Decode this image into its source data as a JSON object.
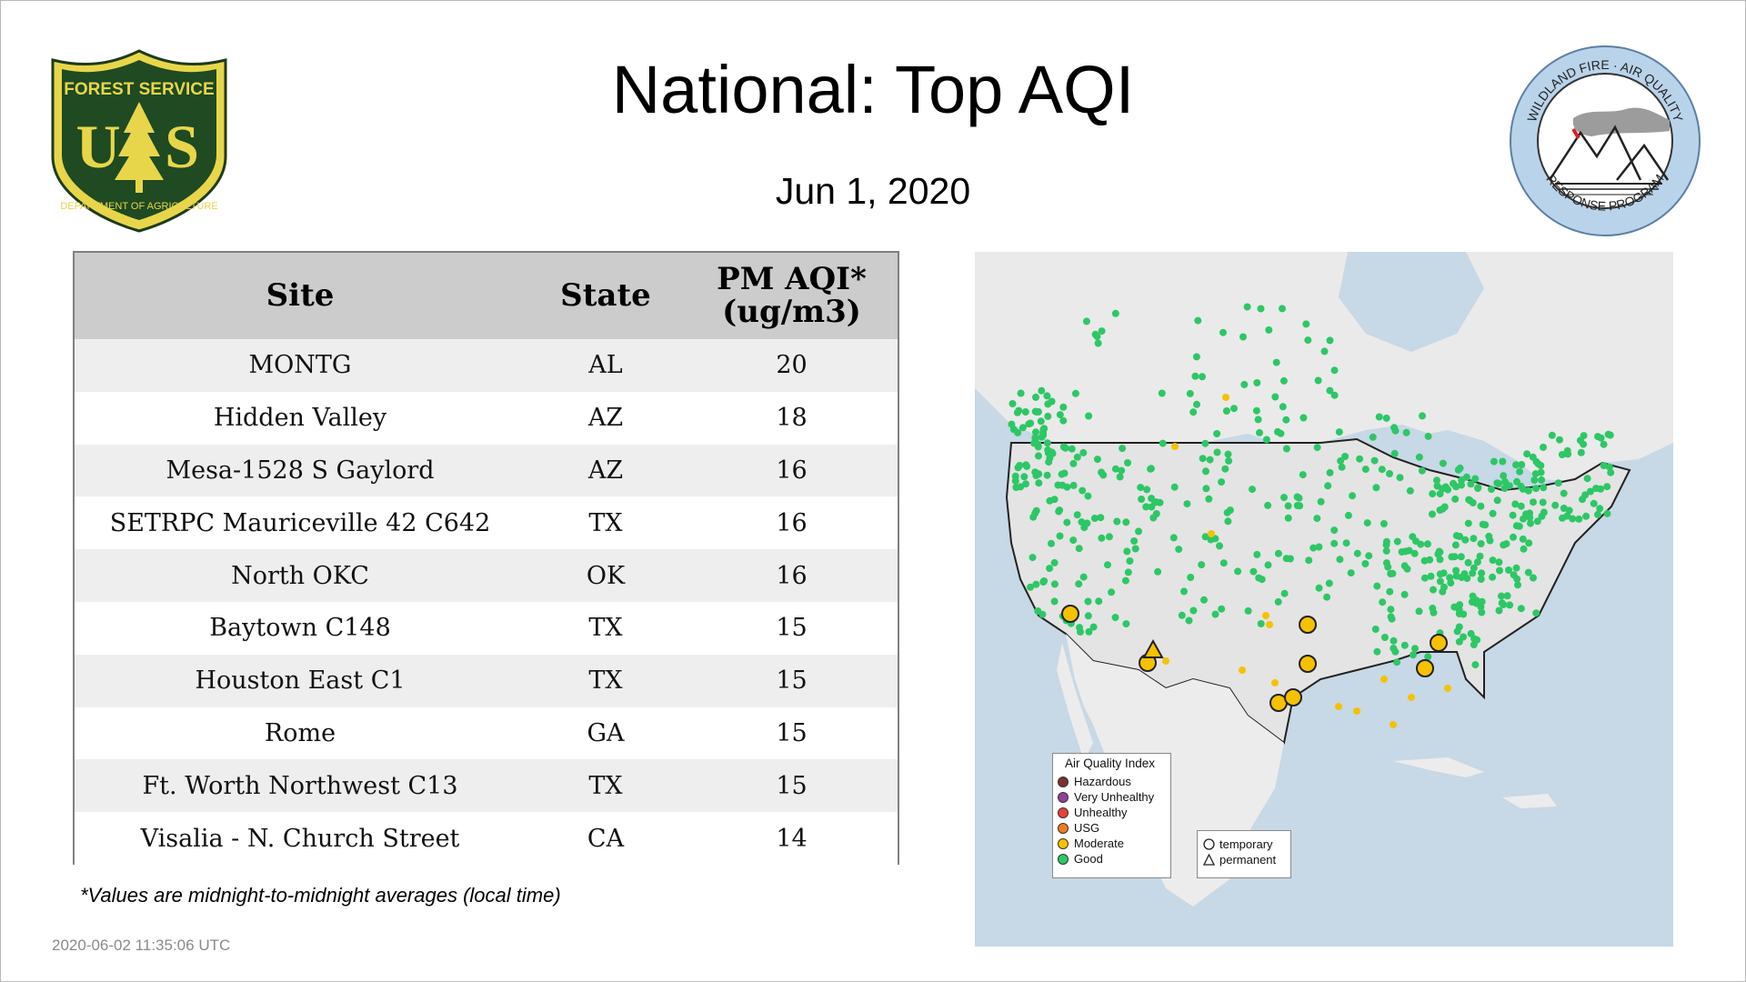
{
  "title": "National: Top AQI",
  "date": "Jun  1, 2020",
  "logos": {
    "forest_service": {
      "top": "FOREST SERVICE",
      "center": "U S",
      "bottom": "DEPARTMENT OF AGRICULTURE"
    },
    "wildland": {
      "top": "WILDLAND FIRE · AIR QUALITY",
      "bottom": "RESPONSE PROGRAM"
    }
  },
  "table": {
    "headers": {
      "site": "Site",
      "state": "State",
      "pm_line1": "PM AQI*",
      "pm_line2": "(ug/m3)"
    },
    "rows": [
      {
        "site": "MONTG",
        "state": "AL",
        "aqi": "20"
      },
      {
        "site": "Hidden Valley",
        "state": "AZ",
        "aqi": "18"
      },
      {
        "site": "Mesa-1528 S Gaylord",
        "state": "AZ",
        "aqi": "16"
      },
      {
        "site": "SETRPC Mauriceville 42 C642",
        "state": "TX",
        "aqi": "16"
      },
      {
        "site": "North OKC",
        "state": "OK",
        "aqi": "16"
      },
      {
        "site": "Baytown C148",
        "state": "TX",
        "aqi": "15"
      },
      {
        "site": "Houston East C1",
        "state": "TX",
        "aqi": "15"
      },
      {
        "site": "Rome",
        "state": "GA",
        "aqi": "15"
      },
      {
        "site": "Ft. Worth Northwest C13",
        "state": "TX",
        "aqi": "15"
      },
      {
        "site": "Visalia - N. Church Street",
        "state": "CA",
        "aqi": "14"
      }
    ]
  },
  "footnote": "*Values are midnight-to-midnight averages (local time)",
  "timestamp": "2020-06-02 11:35:06 UTC",
  "legend": {
    "title": "Air Quality Index",
    "items": [
      {
        "label": "Hazardous",
        "color": "#7e2f2f"
      },
      {
        "label": "Very Unhealthy",
        "color": "#8f3f97"
      },
      {
        "label": "Unhealthy",
        "color": "#e8403a"
      },
      {
        "label": "USG",
        "color": "#f07d22"
      },
      {
        "label": "Moderate",
        "color": "#f5c200"
      },
      {
        "label": "Good",
        "color": "#2dc766"
      }
    ],
    "shapes": [
      {
        "label": "temporary",
        "icon": "circle-icon"
      },
      {
        "label": "permanent",
        "icon": "triangle-icon"
      }
    ]
  },
  "colors": {
    "good": "#2dc766",
    "moderate": "#f5c200",
    "ocean": "#c7d8e6",
    "land": "#ececec"
  }
}
